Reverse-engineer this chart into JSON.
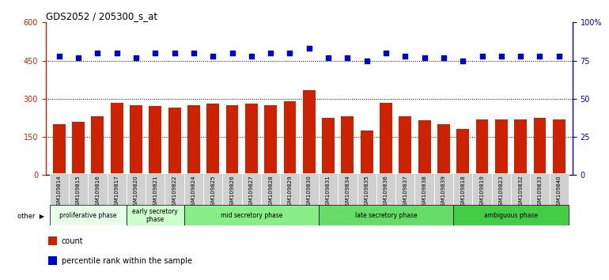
{
  "title": "GDS2052 / 205300_s_at",
  "categories": [
    "GSM109814",
    "GSM109815",
    "GSM109816",
    "GSM109817",
    "GSM109820",
    "GSM109821",
    "GSM109822",
    "GSM109824",
    "GSM109825",
    "GSM109826",
    "GSM109827",
    "GSM109828",
    "GSM109829",
    "GSM109830",
    "GSM109831",
    "GSM109834",
    "GSM109835",
    "GSM109836",
    "GSM109837",
    "GSM109838",
    "GSM109839",
    "GSM109818",
    "GSM109819",
    "GSM109823",
    "GSM109832",
    "GSM109833",
    "GSM109840"
  ],
  "bar_values": [
    200,
    210,
    230,
    285,
    275,
    270,
    265,
    275,
    280,
    275,
    280,
    275,
    290,
    335,
    225,
    230,
    175,
    285,
    230,
    215,
    200,
    180,
    220,
    220,
    220,
    225,
    220
  ],
  "percentile_values": [
    78,
    77,
    80,
    80,
    77,
    80,
    80,
    80,
    78,
    80,
    78,
    80,
    80,
    83,
    77,
    77,
    75,
    80,
    78,
    77,
    77,
    75,
    78,
    78,
    78,
    78,
    78
  ],
  "bar_color": "#cc2200",
  "percentile_color": "#0000cc",
  "ylim_left": [
    0,
    600
  ],
  "ylim_right": [
    0,
    100
  ],
  "yticks_left": [
    0,
    150,
    300,
    450,
    600
  ],
  "yticks_right": [
    0,
    25,
    50,
    75,
    100
  ],
  "ytick_labels_right": [
    "0",
    "25",
    "50",
    "75",
    "100%"
  ],
  "hlines": [
    150,
    300,
    450
  ],
  "phase_groups": [
    {
      "label": "proliferative phase",
      "start": 0,
      "end": 4,
      "color": "#e8ffe8"
    },
    {
      "label": "early secretory\nphase",
      "start": 4,
      "end": 7,
      "color": "#ccffcc"
    },
    {
      "label": "mid secretory phase",
      "start": 7,
      "end": 14,
      "color": "#88ee88"
    },
    {
      "label": "late secretory phase",
      "start": 14,
      "end": 21,
      "color": "#66dd66"
    },
    {
      "label": "ambiguous phase",
      "start": 21,
      "end": 27,
      "color": "#44cc44"
    }
  ],
  "legend_items": [
    {
      "label": "count",
      "color": "#cc2200"
    },
    {
      "label": "percentile rank within the sample",
      "color": "#0000cc"
    }
  ]
}
